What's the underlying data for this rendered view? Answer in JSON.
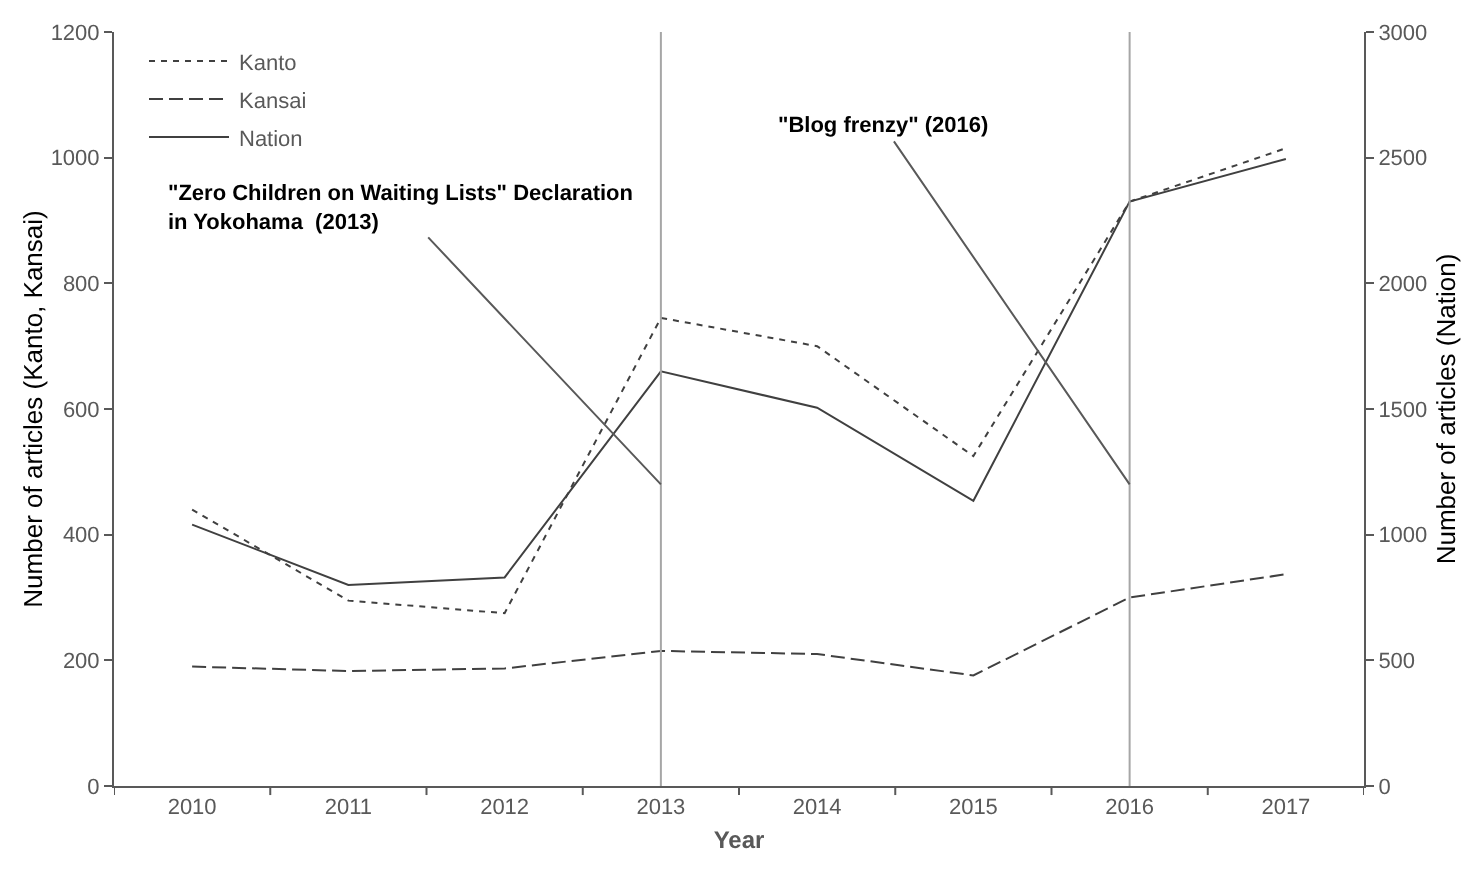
{
  "chart_data": {
    "type": "line",
    "xlabel": "Year",
    "ylabel": "Number of articles (Kanto, Kansai)",
    "y2label": "Number of articles (Nation)",
    "categories": [
      "2010",
      "2011",
      "2012",
      "2013",
      "2014",
      "2015",
      "2016",
      "2017"
    ],
    "series": [
      {
        "name": "Kanto",
        "color": "#404040",
        "line_style": "dotted",
        "values": [
          440,
          295,
          275,
          745,
          700,
          525,
          930,
          1015
        ]
      },
      {
        "name": "Kansai",
        "color": "#404040",
        "line_style": "dashed",
        "values": [
          190,
          183,
          187,
          215,
          210,
          176,
          300,
          337
        ]
      },
      {
        "name": "Nation",
        "color": "#404040",
        "line_style": "solid",
        "axis": "y2",
        "values": [
          1040,
          800,
          830,
          1650,
          1505,
          1135,
          2325,
          2495
        ]
      }
    ],
    "ylim": [
      0,
      1200
    ],
    "yticks": [
      0,
      200,
      400,
      600,
      800,
      1000,
      1200
    ],
    "y2lim": [
      0,
      3000
    ],
    "y2ticks": [
      0,
      500,
      1000,
      1500,
      2000,
      2500,
      3000
    ],
    "ref_lines": [
      {
        "axis": "x",
        "value": "2013",
        "color": "#a6a6a6"
      },
      {
        "axis": "x",
        "value": "2016",
        "color": "#a6a6a6"
      }
    ],
    "annotations": [
      {
        "text": "\"Zero Children on Waiting Lists\" Declaration\nin Yokohama  (2013)",
        "x": "2013",
        "y": 480
      },
      {
        "text": "\"Blog frenzy\" (2016)",
        "x": "2016",
        "y": 480
      }
    ],
    "grid": false,
    "legend": "top left"
  }
}
